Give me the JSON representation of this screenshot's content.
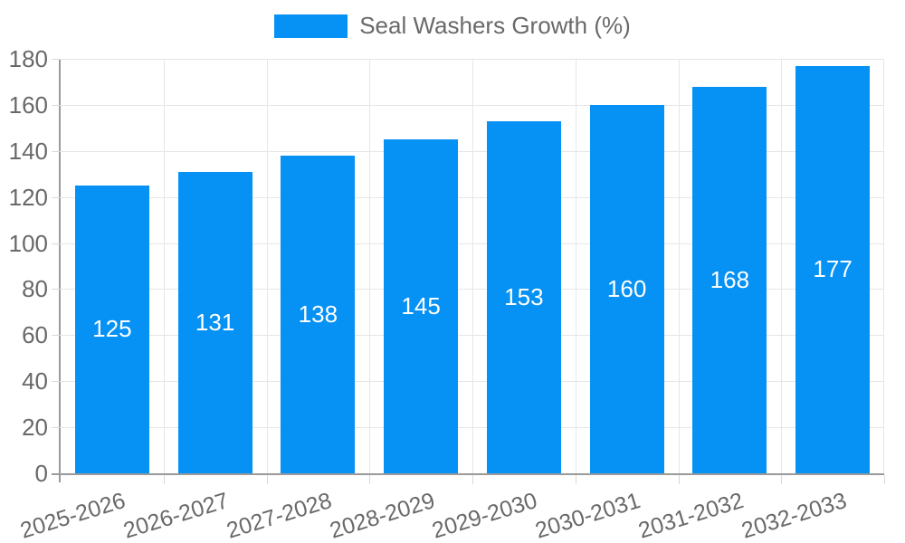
{
  "chart_data": {
    "type": "bar",
    "title": "",
    "legend_position": "top",
    "grid": true,
    "categories": [
      "2025-2026",
      "2026-2027",
      "2027-2028",
      "2028-2029",
      "2029-2030",
      "2030-2031",
      "2031-2032",
      "2032-2033"
    ],
    "series": [
      {
        "name": "Seal Washers Growth (%)",
        "values": [
          125,
          131,
          138,
          145,
          153,
          160,
          168,
          177
        ]
      }
    ],
    "value_labels": {
      "shown": true,
      "position": "center-of-bar"
    },
    "xlabel": "",
    "ylabel": "",
    "ylim": [
      0,
      180
    ],
    "yticks": [
      0,
      20,
      40,
      60,
      80,
      100,
      120,
      140,
      160,
      180
    ],
    "colors": {
      "bar": "#0691F4",
      "value_label": "#FFFFFF",
      "axis_text": "#696969",
      "grid": "#E6E6E6",
      "axis_line": "#9A9A9A",
      "tick": "#D9D9D9",
      "background": "#FFFFFF"
    }
  }
}
